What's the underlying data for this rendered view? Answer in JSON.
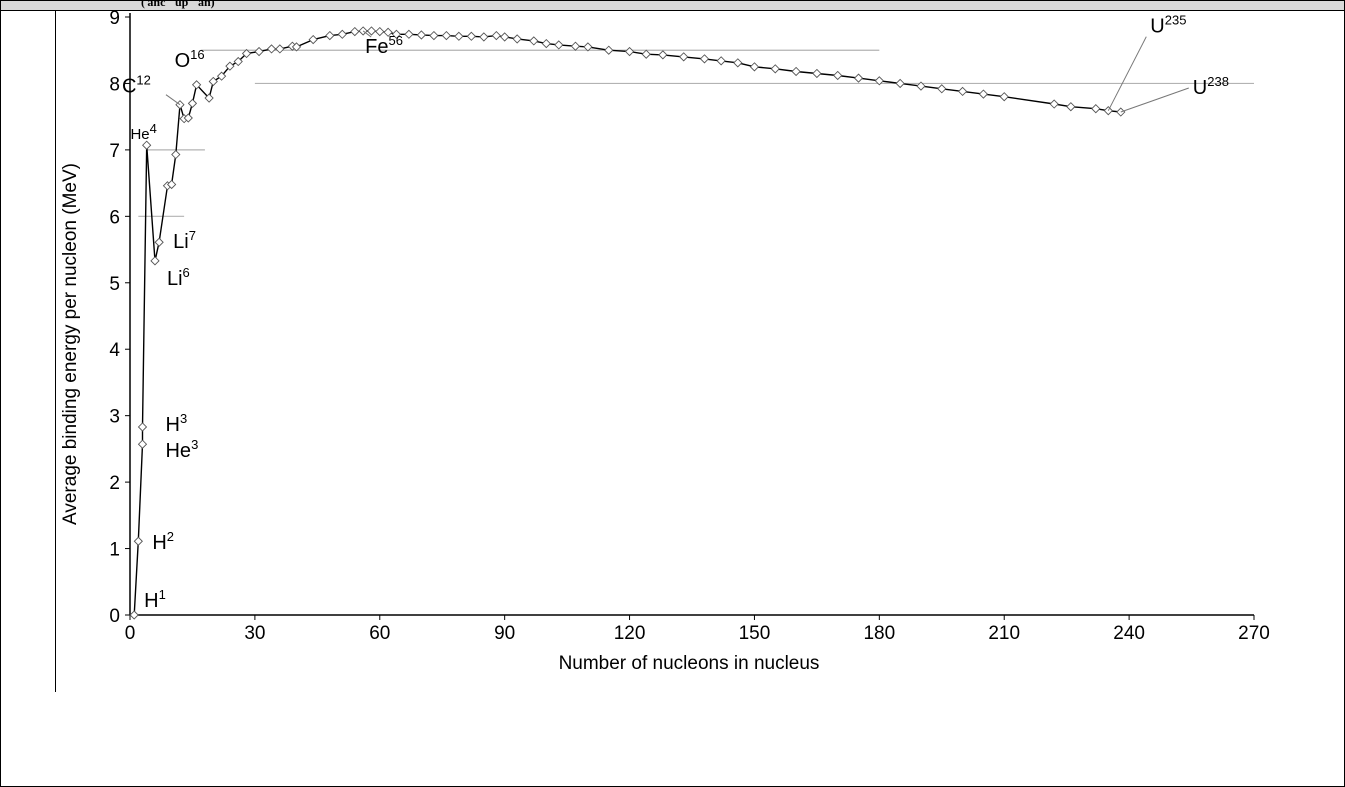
{
  "header": {
    "text": "( anc    up    an)"
  },
  "chart_data": {
    "type": "scatter",
    "title": "",
    "xlabel": "Number of nucleons in nucleus",
    "ylabel": "Average binding energy per nucleon (MeV)",
    "xlim": [
      0,
      270
    ],
    "ylim": [
      0,
      9
    ],
    "xticks": [
      "0",
      "30",
      "60",
      "90",
      "120",
      "150",
      "180",
      "210",
      "240",
      "270"
    ],
    "yticks": [
      "0",
      "1",
      "2",
      "3",
      "4",
      "5",
      "6",
      "7",
      "8",
      "9"
    ],
    "grid": false,
    "reference_lines": [
      {
        "y": 8.5,
        "x_from": 17,
        "x_to": 180
      },
      {
        "y": 8.0,
        "x_from": 30,
        "x_to": 270
      },
      {
        "y": 7.0,
        "x_from": 4,
        "x_to": 18
      },
      {
        "y": 6.0,
        "x_from": 2,
        "x_to": 13
      }
    ],
    "series": [
      {
        "x": [
          1,
          2,
          3,
          3,
          4,
          6,
          7,
          9,
          10,
          11,
          12,
          13,
          14,
          15,
          16,
          19,
          20,
          22,
          24,
          26,
          28,
          31,
          34,
          36,
          39,
          40,
          44,
          48,
          51,
          54,
          56,
          58,
          60,
          62,
          64,
          67,
          70,
          73,
          76,
          79,
          82,
          85,
          88,
          90,
          93,
          97,
          100,
          103,
          107,
          110,
          115,
          120,
          124,
          128,
          133,
          138,
          142,
          146,
          150,
          155,
          160,
          165,
          170,
          175,
          180,
          185,
          190,
          195,
          200,
          205,
          210,
          222,
          226,
          232,
          235,
          238
        ],
        "y": [
          0.0,
          1.11,
          2.57,
          2.83,
          7.07,
          5.33,
          5.61,
          6.46,
          6.48,
          6.93,
          7.68,
          7.47,
          7.48,
          7.7,
          7.98,
          7.78,
          8.03,
          8.11,
          8.26,
          8.33,
          8.45,
          8.48,
          8.52,
          8.52,
          8.56,
          8.55,
          8.66,
          8.72,
          8.74,
          8.78,
          8.79,
          8.79,
          8.78,
          8.77,
          8.74,
          8.74,
          8.73,
          8.72,
          8.72,
          8.71,
          8.71,
          8.7,
          8.72,
          8.7,
          8.67,
          8.64,
          8.6,
          8.58,
          8.56,
          8.55,
          8.5,
          8.48,
          8.44,
          8.43,
          8.4,
          8.37,
          8.34,
          8.31,
          8.25,
          8.22,
          8.18,
          8.15,
          8.12,
          8.08,
          8.04,
          8.0,
          7.96,
          7.92,
          7.88,
          7.84,
          7.8,
          7.69,
          7.65,
          7.62,
          7.59,
          7.57
        ],
        "marker": "diamond",
        "color": "#000000"
      }
    ],
    "annotations": [
      {
        "base": "H",
        "sup": "1",
        "x": 1,
        "y": 0.0
      },
      {
        "base": "H",
        "sup": "2",
        "x": 2,
        "y": 1.11
      },
      {
        "base": "H",
        "sup": "3",
        "x": 3,
        "y": 2.83
      },
      {
        "base": "He",
        "sup": "3",
        "x": 3,
        "y": 2.57
      },
      {
        "base": "He",
        "sup": "4",
        "x": 4,
        "y": 7.07
      },
      {
        "base": "Li",
        "sup": "6",
        "x": 6,
        "y": 5.33
      },
      {
        "base": "Li",
        "sup": "7",
        "x": 7,
        "y": 5.61
      },
      {
        "base": "C",
        "sup": "12",
        "x": 12,
        "y": 7.68
      },
      {
        "base": "O",
        "sup": "16",
        "x": 16,
        "y": 7.98
      },
      {
        "base": "Fe",
        "sup": "56",
        "x": 56,
        "y": 8.79
      },
      {
        "base": "U",
        "sup": "235",
        "x": 235,
        "y": 7.59
      },
      {
        "base": "U",
        "sup": "238",
        "x": 238,
        "y": 7.57
      }
    ]
  }
}
